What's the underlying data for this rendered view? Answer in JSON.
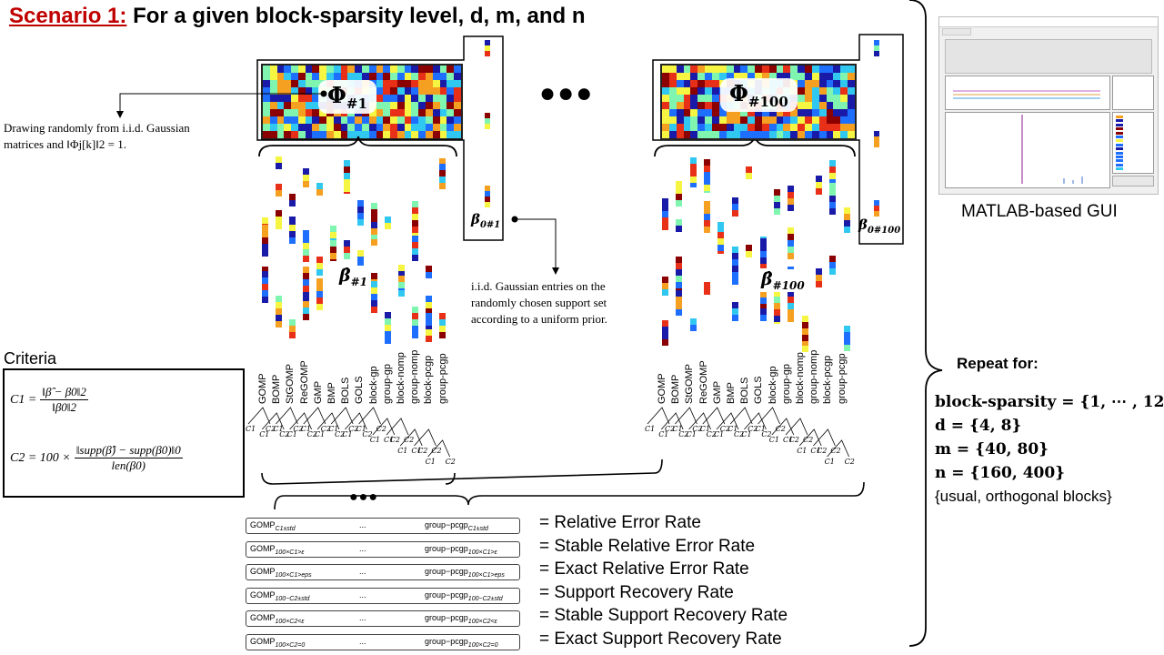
{
  "title": {
    "scenario": "Scenario 1:",
    "text": "For a given block-sparsity level, d, m, and n"
  },
  "dots": "●●●",
  "phi1": {
    "symbol": "Φ",
    "sub": "#1"
  },
  "phi100": {
    "symbol": "Φ",
    "sub": "#100"
  },
  "beta0_1": {
    "symbol": "β",
    "sub": "0#1"
  },
  "beta0_100": {
    "symbol": "β",
    "sub": "0#100"
  },
  "betahat1": {
    "symbol": "β̂",
    "sub": "#1"
  },
  "betahat100": {
    "symbol": "β̂",
    "sub": "#100"
  },
  "note_phi": {
    "line1": "Drawing randomly from i.i.d. Gaussian",
    "line2": "matrices and ‖Φj[k]‖2 = 1."
  },
  "note_beta": {
    "line1": "i.i.d. Gaussian entries on the",
    "line2": "randomly chosen support set",
    "line3": "according to a uniform prior."
  },
  "algorithms": [
    "GOMP",
    "BOMP",
    "StGOMP",
    "ReGOMP",
    "GMP",
    "BMP",
    "BOLS",
    "GOLS",
    "block-gp",
    "group-gp",
    "block-nomp",
    "group-nomp",
    "block-pcgp",
    "group-pcgp"
  ],
  "c1": "C1",
  "c2": "C2",
  "criteria": {
    "label": "Criteria",
    "c1_lhs": "C1 =",
    "c1_num": "‖β̂ − β0‖2",
    "c1_den": "‖β0‖2",
    "c2_lhs": "C2 = 100 ×",
    "c2_num": "‖supp(β̂) − supp(β0)‖0",
    "c2_den": "len(β0)"
  },
  "ellipsis": "...",
  "rows": [
    {
      "left": "GOMP",
      "left_sub": "C1±std",
      "right": "group−pcgp",
      "right_sub": "C1±std",
      "label": "= Relative Error Rate"
    },
    {
      "left": "GOMP",
      "left_sub": "100×C1>ε",
      "right": "group−pcgp",
      "right_sub": "100×C1>ε",
      "label": "= Stable Relative Error Rate"
    },
    {
      "left": "GOMP",
      "left_sub": "100×C1>eps",
      "right": "group−pcgp",
      "right_sub": "100×C1>eps",
      "label": "= Exact Relative Error Rate"
    },
    {
      "left": "GOMP",
      "left_sub": "100−C2±std",
      "right": "group−pcgp",
      "right_sub": "100−C2±std",
      "label": "= Support Recovery Rate"
    },
    {
      "left": "GOMP",
      "left_sub": "100×C2<ε",
      "right": "group−pcgp",
      "right_sub": "100×C2<ε",
      "label": "= Stable Support Recovery Rate"
    },
    {
      "left": "GOMP",
      "left_sub": "100×C2=0",
      "right": "group−pcgp",
      "right_sub": "100×C2=0",
      "label": "= Exact Support Recovery Rate"
    }
  ],
  "gui_caption": "MATLAB-based GUI",
  "repeat": {
    "heading": "Repeat for:",
    "l1": "block-sparsity  = {1, ⋯ , 12}",
    "l2": "d = {4, 8}",
    "l3": "m = {40, 80}",
    "l4": "n = {160, 400}",
    "l5": "{usual, orthogonal blocks}"
  },
  "colors": {
    "title_red": "#c00000",
    "palette": [
      "#1a1aa8",
      "#1f6fff",
      "#30c8f0",
      "#7ff5b0",
      "#f5f542",
      "#f5a020",
      "#e83018",
      "#8b0000"
    ]
  }
}
